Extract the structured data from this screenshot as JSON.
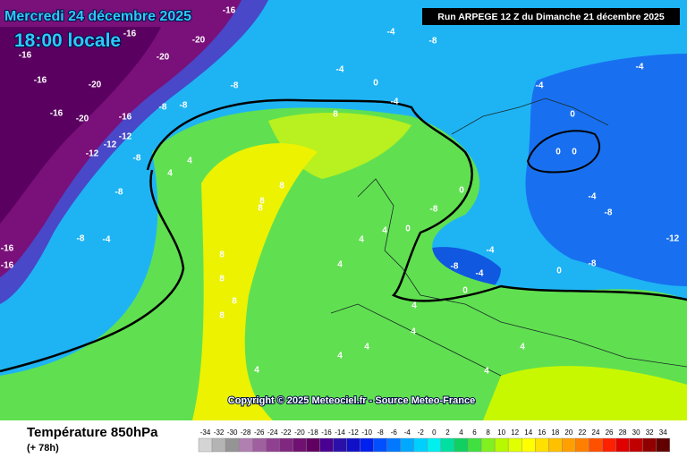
{
  "header": {
    "date": "Mercredi 24 décembre 2025",
    "time": "18:00 locale",
    "run": "Run ARPEGE 12 Z du Dimanche 21 décembre 2025"
  },
  "copyright": "Copyright © 2025 Meteociel.fr - Source Meteo-France",
  "footer": {
    "title": "Température 850hPa",
    "lead": "(+ 78h)"
  },
  "legend": {
    "values": [
      -34,
      -32,
      -30,
      -28,
      -26,
      -24,
      -22,
      -20,
      -18,
      -16,
      -14,
      -12,
      -10,
      -8,
      -6,
      -4,
      -2,
      0,
      2,
      4,
      6,
      8,
      10,
      12,
      14,
      16,
      18,
      20,
      22,
      24,
      26,
      28,
      30,
      32,
      34
    ],
    "colors": [
      "#d4d4d4",
      "#b4b4b4",
      "#949494",
      "#b080b0",
      "#a060a0",
      "#904090",
      "#802880",
      "#701070",
      "#600060",
      "#4a0090",
      "#2a10a8",
      "#1010c8",
      "#0020f0",
      "#0050ff",
      "#0078ff",
      "#00a8ff",
      "#00d0ff",
      "#00f0f0",
      "#00e0a0",
      "#10d060",
      "#40e040",
      "#80f020",
      "#b8f800",
      "#e0ff00",
      "#ffff00",
      "#ffe000",
      "#ffc000",
      "#ffa000",
      "#ff8000",
      "#ff5000",
      "#ff2000",
      "#e00000",
      "#c00000",
      "#900000",
      "#600000"
    ]
  },
  "map": {
    "labels": [
      "-16",
      "-16",
      "-20",
      "-16",
      "-20",
      "-16",
      "-8",
      "-8",
      "-12",
      "-12",
      "-12",
      "-8",
      "-8",
      "-8",
      "-4",
      "-16",
      "-16",
      "-20",
      "-16",
      "-20",
      "-4",
      "-8",
      "-4",
      "0",
      "-4",
      "-8",
      "8",
      "4",
      "4",
      "8",
      "8",
      "8",
      "8",
      "8",
      "8",
      "8",
      "4",
      "4",
      "4",
      "0",
      "-8",
      "-4",
      "-8",
      "-4",
      "0",
      "0",
      "-8",
      "-12",
      "-4",
      "-8",
      "0",
      "0",
      "0",
      "0",
      "-4",
      "-4",
      "4",
      "4",
      "4",
      "4",
      "4",
      "4",
      "4",
      "-16"
    ]
  }
}
